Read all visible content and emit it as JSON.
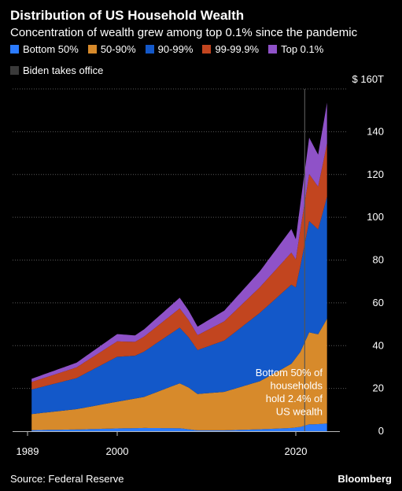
{
  "title": "Distribution of US Household Wealth",
  "subtitle": "Concentration of wealth grew among top 0.1% since the pandemic",
  "source": "Source: Federal Reserve",
  "brand": "Bloomberg",
  "chart_data": {
    "type": "area",
    "stacked": true,
    "series": [
      {
        "name": "Bottom 50%",
        "color": "#2b7bff",
        "values": [
          [
            1989.5,
            0.5
          ],
          [
            1995,
            0.8
          ],
          [
            2000,
            1.3
          ],
          [
            2003,
            1.5
          ],
          [
            2007,
            1.4
          ],
          [
            2009,
            0.4
          ],
          [
            2012,
            0.4
          ],
          [
            2016,
            0.9
          ],
          [
            2019.5,
            1.5
          ],
          [
            2020.5,
            2.0
          ],
          [
            2021.5,
            3.2
          ],
          [
            2022.5,
            3.3
          ],
          [
            2023.5,
            3.6
          ]
        ]
      },
      {
        "name": "50-90%",
        "color": "#d78a2b",
        "values": [
          [
            1989.5,
            7.5
          ],
          [
            1995,
            9.5
          ],
          [
            2000,
            12.5
          ],
          [
            2003,
            14.5
          ],
          [
            2007,
            21.0
          ],
          [
            2008,
            19.5
          ],
          [
            2009,
            17.0
          ],
          [
            2012,
            18.0
          ],
          [
            2016,
            22.5
          ],
          [
            2019.5,
            30
          ],
          [
            2020.5,
            35
          ],
          [
            2021.5,
            43
          ],
          [
            2022.5,
            42
          ],
          [
            2023.5,
            49
          ]
        ]
      },
      {
        "name": "90-99%",
        "color": "#1358c9",
        "values": [
          [
            1989.5,
            11.5
          ],
          [
            1995,
            14.5
          ],
          [
            2000,
            21
          ],
          [
            2002,
            20
          ],
          [
            2007,
            26
          ],
          [
            2008,
            23.5
          ],
          [
            2009,
            20.5
          ],
          [
            2012,
            24
          ],
          [
            2016,
            32
          ],
          [
            2019.5,
            37
          ],
          [
            2020,
            33
          ],
          [
            2020.5,
            40
          ],
          [
            2021.5,
            52
          ],
          [
            2022.5,
            49
          ],
          [
            2023.5,
            57
          ]
        ]
      },
      {
        "name": "99-99.9%",
        "color": "#c2451f",
        "values": [
          [
            1989.5,
            3.5
          ],
          [
            1995,
            5
          ],
          [
            2000,
            7.2
          ],
          [
            2002,
            6.5
          ],
          [
            2007,
            9
          ],
          [
            2008,
            8
          ],
          [
            2009,
            7
          ],
          [
            2012,
            9
          ],
          [
            2016,
            12
          ],
          [
            2019.5,
            15
          ],
          [
            2020,
            13
          ],
          [
            2020.5,
            17
          ],
          [
            2021.5,
            22
          ],
          [
            2022.5,
            20
          ],
          [
            2023.5,
            25
          ]
        ]
      },
      {
        "name": "Top 0.1%",
        "color": "#8f52c8",
        "values": [
          [
            1989.5,
            1.5
          ],
          [
            1995,
            2.2
          ],
          [
            2000,
            3.4
          ],
          [
            2002,
            3
          ],
          [
            2007,
            5
          ],
          [
            2008,
            4.5
          ],
          [
            2009,
            4
          ],
          [
            2012,
            5
          ],
          [
            2016,
            7.5
          ],
          [
            2019.5,
            11
          ],
          [
            2020,
            9.5
          ],
          [
            2020.5,
            12
          ],
          [
            2021.5,
            17
          ],
          [
            2022.5,
            15
          ],
          [
            2023.5,
            19
          ]
        ]
      }
    ],
    "reference_line": {
      "name": "Biden takes office",
      "x": 2021,
      "color": "#555555"
    },
    "xlim": [
      1989,
      2023.5
    ],
    "ylim": [
      0,
      160
    ],
    "x_ticks": [
      1989,
      2000,
      2020
    ],
    "y_ticks": [
      0,
      20,
      40,
      60,
      80,
      100,
      120,
      140,
      160
    ],
    "y_tick_labels": [
      "0",
      "20",
      "40",
      "60",
      "80",
      "100",
      "120",
      "140",
      "$ 160T"
    ],
    "annotation": {
      "lines": [
        "Bottom 50% of",
        "households",
        "hold 2.4% of",
        "US wealth"
      ],
      "x": 2021.5,
      "y": 28
    },
    "grid": "horizontal-dotted",
    "legend_placement": "top-left"
  }
}
